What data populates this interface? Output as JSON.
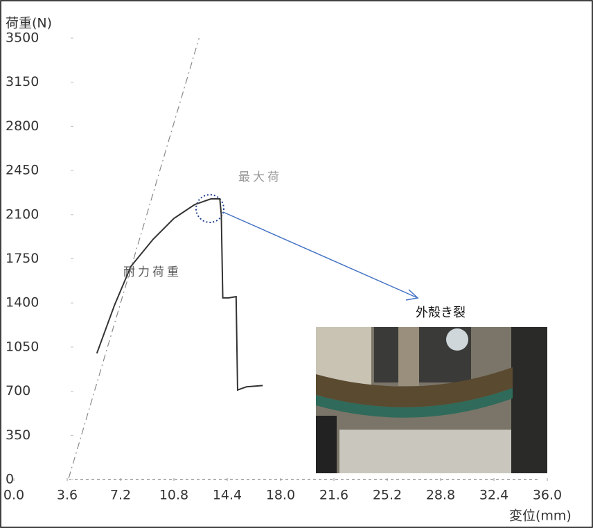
{
  "chart_data": {
    "type": "line",
    "y_label": "荷重(N)",
    "x_label": "変位(mm)",
    "xlim": [
      0,
      36
    ],
    "ylim": [
      0,
      3500
    ],
    "xticks": [
      {
        "value": 0,
        "label": "0.0"
      },
      3.6,
      7.2,
      10.8,
      14.4,
      {
        "value": 18,
        "label": "18.0"
      },
      21.6,
      25.2,
      28.8,
      32.4,
      {
        "value": 36,
        "label": "36.0"
      }
    ],
    "yticks": [
      0,
      350,
      700,
      1050,
      1400,
      1750,
      2100,
      2450,
      2800,
      3150,
      3500
    ],
    "series": [
      {
        "color": "#333333",
        "x": [
          5.6,
          6.8,
          7.9,
          9.4,
          10.8,
          12.2,
          13.3,
          13.9,
          14.0,
          14.1,
          14.5,
          15.0,
          15.1,
          15.7,
          16.8
        ],
        "values": [
          1000,
          1385,
          1690,
          1905,
          2070,
          2180,
          2225,
          2225,
          2100,
          1440,
          1440,
          1450,
          710,
          735,
          745
        ]
      },
      {
        "color": "#888888",
        "dashed": true,
        "x": [
          3.7,
          12.5
        ],
        "values": [
          10,
          3500
        ]
      }
    ],
    "annotations": [
      "耐力荷重",
      "最大荷",
      "外殻き裂"
    ]
  }
}
